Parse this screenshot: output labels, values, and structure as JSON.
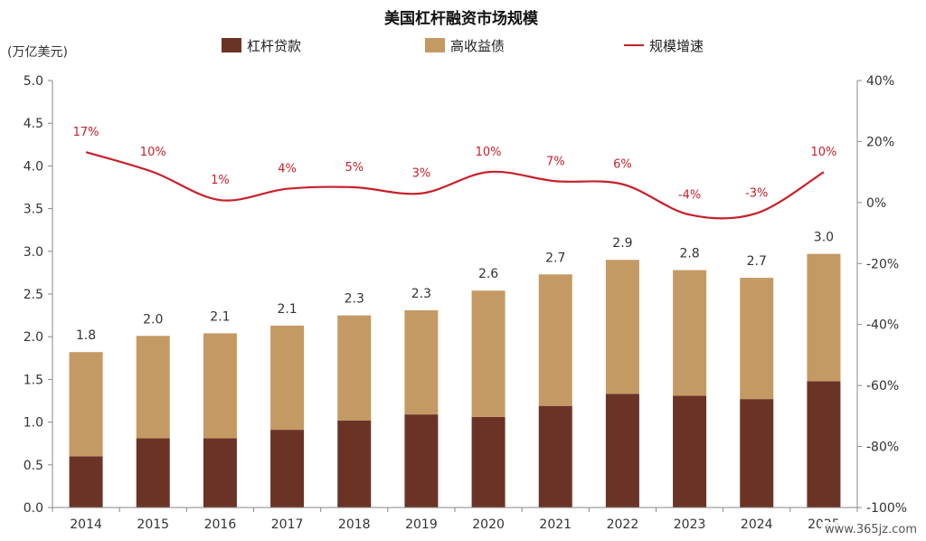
{
  "chart_data": {
    "type": "bar",
    "title": "美国杠杆融资市场规模",
    "ylabel": "(万亿美元)",
    "categories": [
      "2014",
      "2015",
      "2016",
      "2017",
      "2018",
      "2019",
      "2020",
      "2021",
      "2022",
      "2023",
      "2024",
      "2025"
    ],
    "ylim": [
      0,
      5.0
    ],
    "yticks": [
      "0.0",
      "0.5",
      "1.0",
      "1.5",
      "2.0",
      "2.5",
      "3.0",
      "3.5",
      "4.0",
      "4.5",
      "5.0"
    ],
    "y2lim": [
      -100,
      40
    ],
    "y2ticks": [
      "-100%",
      "-80%",
      "-60%",
      "-40%",
      "-20%",
      "0%",
      "20%",
      "40%"
    ],
    "series": [
      {
        "name": "杠杆贷款",
        "kind": "stacked-bar",
        "color": "#6b3326",
        "values": [
          0.6,
          0.81,
          0.81,
          0.91,
          1.02,
          1.09,
          1.06,
          1.19,
          1.33,
          1.31,
          1.27,
          1.48
        ]
      },
      {
        "name": "高收益债",
        "kind": "stacked-bar",
        "color": "#c49a64",
        "values": [
          1.22,
          1.2,
          1.23,
          1.22,
          1.23,
          1.22,
          1.48,
          1.54,
          1.57,
          1.47,
          1.42,
          1.49
        ]
      },
      {
        "name": "规模增速",
        "kind": "line",
        "axis": "right",
        "color": "#c8202a",
        "values": [
          16.5,
          10,
          0.8,
          4.5,
          5,
          3,
          10,
          7,
          6,
          -4,
          -3.5,
          10
        ],
        "labels": [
          "17%",
          "10%",
          "1%",
          "4%",
          "5%",
          "3%",
          "10%",
          "7%",
          "6%",
          "-4%",
          "-3%",
          "10%"
        ]
      }
    ],
    "totals": [
      "1.8",
      "2.0",
      "2.1",
      "2.1",
      "2.3",
      "2.3",
      "2.6",
      "2.7",
      "2.9",
      "2.8",
      "2.7",
      "3.0"
    ],
    "legend_position": "top",
    "grid": false
  },
  "watermark": "www.365jz.com"
}
